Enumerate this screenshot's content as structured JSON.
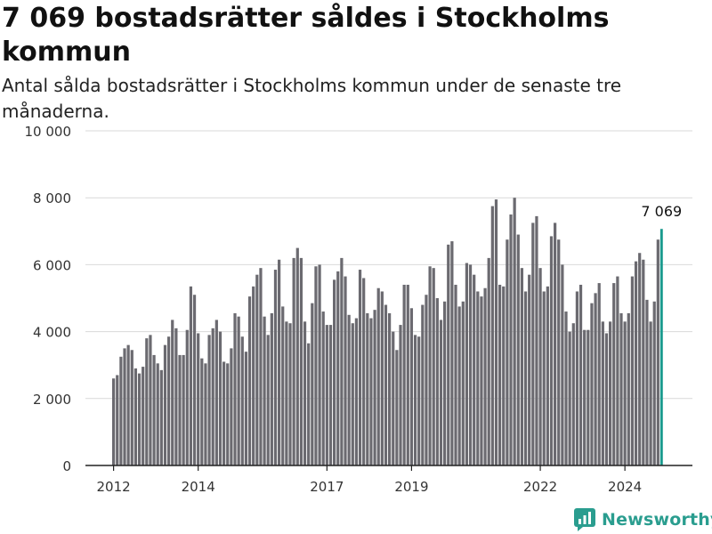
{
  "header": {
    "title": "7 069 bostadsrätter såldes i Stockholms kommun",
    "subtitle": "Antal sålda bostadsrätter i Stockholms kommun under de senaste tre månaderna."
  },
  "brand": {
    "name": "Newsworthy",
    "color": "#2a9d8f",
    "icon": "newsworthy-logo-icon"
  },
  "chart_data": {
    "type": "bar",
    "ylim": [
      0,
      10000
    ],
    "yticks": [
      0,
      2000,
      4000,
      6000,
      8000,
      10000
    ],
    "ytick_labels": [
      "0",
      "2 000",
      "4 000",
      "6 000",
      "8 000",
      "10 000"
    ],
    "xtick_labels": [
      {
        "label": "2012",
        "index": 0
      },
      {
        "label": "2014",
        "index": 23
      },
      {
        "label": "2017",
        "index": 58
      },
      {
        "label": "2019",
        "index": 81
      },
      {
        "label": "2022",
        "index": 116
      },
      {
        "label": "2024",
        "index": 139
      }
    ],
    "bar_color": "#6b6a70",
    "highlight_color": "#1a9a8e",
    "highlight_label": "7 069",
    "values": [
      2600,
      2700,
      3250,
      3500,
      3600,
      3450,
      2900,
      2750,
      2950,
      3800,
      3900,
      3300,
      3050,
      2850,
      3600,
      3850,
      4350,
      4100,
      3300,
      3300,
      4050,
      5350,
      5100,
      3950,
      3200,
      3050,
      3900,
      4100,
      4350,
      4000,
      3100,
      3050,
      3500,
      4550,
      4450,
      3850,
      3400,
      5050,
      5350,
      5700,
      5900,
      4450,
      3900,
      4550,
      5850,
      6150,
      4750,
      4300,
      4250,
      6200,
      6500,
      6200,
      4300,
      3650,
      4850,
      5950,
      6000,
      4600,
      4200,
      4200,
      5550,
      5800,
      6200,
      5650,
      4500,
      4250,
      4400,
      5850,
      5600,
      4550,
      4400,
      4650,
      5300,
      5200,
      4800,
      4550,
      4000,
      3450,
      4200,
      5400,
      5400,
      4700,
      3900,
      3850,
      4800,
      5100,
      5950,
      5900,
      5000,
      4350,
      4900,
      6600,
      6700,
      5400,
      4750,
      4900,
      6050,
      6000,
      5700,
      5200,
      5050,
      5300,
      6200,
      7750,
      7950,
      5400,
      5350,
      6750,
      7500,
      8000,
      6900,
      5900,
      5200,
      5700,
      7250,
      7450,
      5900,
      5200,
      5350,
      6850,
      7250,
      6750,
      6000,
      4600,
      4000,
      4250,
      5200,
      5400,
      4050,
      4050,
      4850,
      5150,
      5450,
      4300,
      3950,
      4300,
      5450,
      5650,
      4550,
      4300,
      4550,
      5650,
      6100,
      6350,
      6150,
      4950,
      4300,
      4900,
      6750,
      7069
    ]
  }
}
